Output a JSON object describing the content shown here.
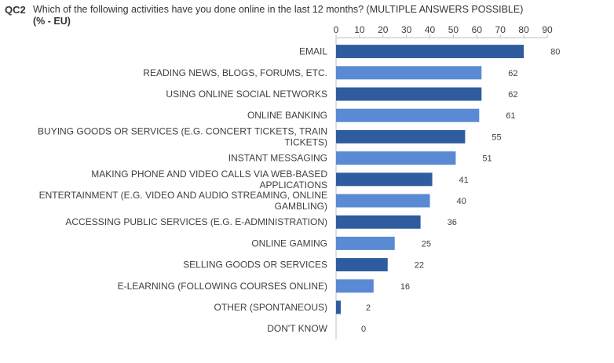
{
  "question": {
    "code": "QC2",
    "text": "Which of the following activities have you done online in the last 12 months? (MULTIPLE ANSWERS POSSIBLE)",
    "subtitle": "(% - EU)"
  },
  "colors": {
    "dark_bar": "#2E5C9E",
    "light_bar": "#5B8AD4",
    "axis": "#BFBFBF",
    "text": "#404040"
  },
  "chart_data": {
    "type": "bar",
    "orientation": "horizontal",
    "categories": [
      [
        "EMAIL"
      ],
      [
        "READING NEWS, BLOGS, FORUMS, ETC."
      ],
      [
        "USING ONLINE SOCIAL NETWORKS"
      ],
      [
        "ONLINE BANKING"
      ],
      [
        "BUYING GOODS OR SERVICES (E.G. CONCERT TICKETS, TRAIN",
        "TICKETS)"
      ],
      [
        "INSTANT MESSAGING"
      ],
      [
        "MAKING PHONE AND VIDEO CALLS VIA WEB-BASED",
        "APPLICATIONS"
      ],
      [
        "ENTERTAINMENT (E.G. VIDEO AND AUDIO STREAMING, ONLINE",
        "GAMBLING)"
      ],
      [
        "ACCESSING PUBLIC SERVICES (E.G. E-ADMINISTRATION)"
      ],
      [
        "ONLINE GAMING"
      ],
      [
        "SELLING GOODS OR SERVICES"
      ],
      [
        "E-LEARNING (FOLLOWING COURSES ONLINE)"
      ],
      [
        "OTHER (SPONTANEOUS)"
      ],
      [
        "DON'T KNOW"
      ]
    ],
    "values": [
      80,
      62,
      62,
      61,
      55,
      51,
      41,
      40,
      36,
      25,
      22,
      16,
      2,
      0
    ],
    "bar_colors": [
      "dark",
      "light",
      "dark",
      "light",
      "dark",
      "light",
      "dark",
      "light",
      "dark",
      "light",
      "dark",
      "light",
      "dark",
      "light"
    ],
    "xlim": [
      0,
      90
    ],
    "xticks": [
      0,
      10,
      20,
      30,
      40,
      50,
      60,
      70,
      80,
      90
    ],
    "axis_position": "top",
    "grid": false,
    "legend": "none"
  }
}
